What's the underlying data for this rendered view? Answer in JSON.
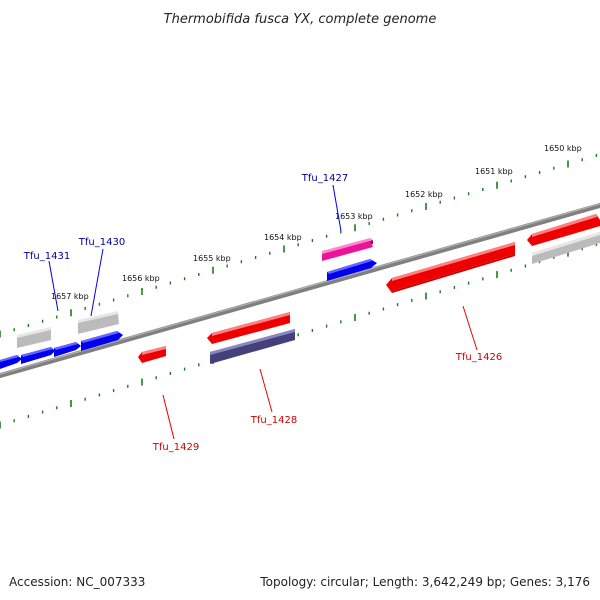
{
  "title": "Thermobifida fusca YX, complete genome",
  "footer": {
    "accession": "Accession: NC_007333",
    "summary": "Topology: circular; Length: 3,642,249 bp; Genes: 3,176"
  },
  "colors": {
    "forward_gene": "#0000ee",
    "reverse_gene": "#ee0000",
    "forward_label": "#000099",
    "reverse_label": "#cc0000",
    "pseudo_gene": "#bbbbbb",
    "magenta_gene": "#ee1199",
    "slate_gene": "#44407a",
    "backbone": "#808080",
    "tick": "#1e7a1e"
  },
  "ticks": [
    {
      "label": "1650 kbp"
    },
    {
      "label": "1651 kbp"
    },
    {
      "label": "1652 kbp"
    },
    {
      "label": "1653 kbp"
    },
    {
      "label": "1654 kbp"
    },
    {
      "label": "1655 kbp"
    },
    {
      "label": "1656 kbp"
    },
    {
      "label": "1657 kbp"
    }
  ],
  "gene_labels": [
    {
      "text": "Tfu_1427",
      "strand": "forward"
    },
    {
      "text": "Tfu_1430",
      "strand": "forward"
    },
    {
      "text": "Tfu_1431",
      "strand": "forward"
    },
    {
      "text": "Tfu_1426",
      "strand": "reverse"
    },
    {
      "text": "Tfu_1428",
      "strand": "reverse"
    },
    {
      "text": "Tfu_1429",
      "strand": "reverse"
    }
  ]
}
